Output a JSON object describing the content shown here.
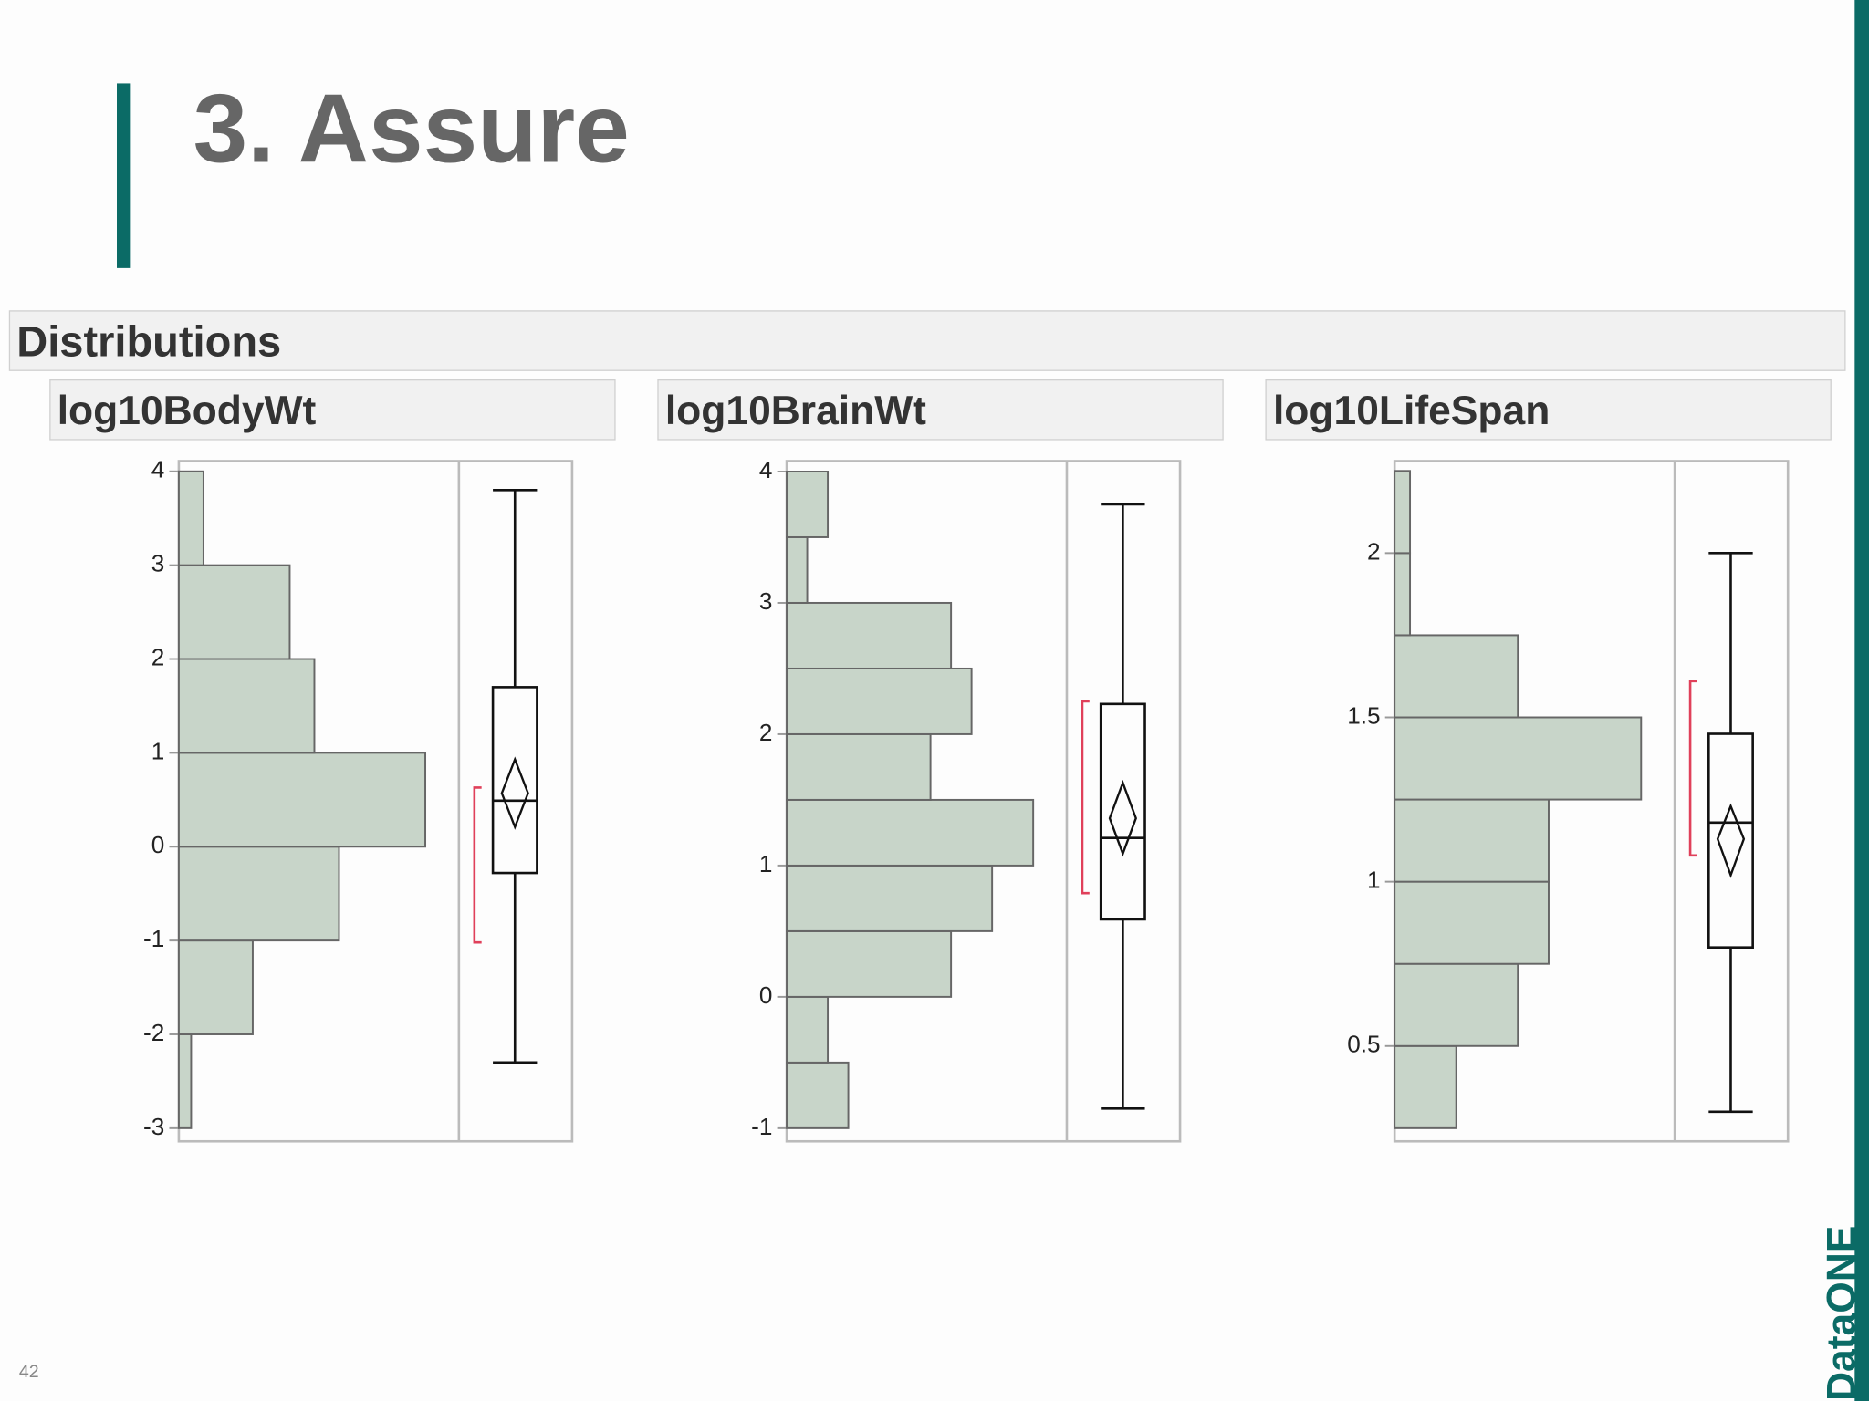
{
  "slide": {
    "title": "3. Assure",
    "page_number": "42",
    "logo": "DataONE"
  },
  "panel_title": "Distributions",
  "chart_data": [
    {
      "type": "histogram",
      "title": "log10BodyWt",
      "orientation": "horizontal",
      "color": "#c8d5c9",
      "bins": [
        -3,
        -2,
        -1,
        0,
        1,
        2,
        3,
        4
      ],
      "counts": [
        1,
        6,
        13,
        20,
        11,
        9,
        2
      ],
      "ylim": [
        -3.14,
        4.11
      ],
      "yticks": [
        -3,
        -2,
        -1,
        0,
        1,
        2,
        3,
        4
      ],
      "box": {
        "whisker_low": -2.3,
        "q1": -0.28,
        "median": 0.49,
        "q3": 1.7,
        "whisker_high": 3.8
      },
      "mean": 0.57,
      "mean_ci": [
        0.21,
        0.93
      ],
      "shortest_half": [
        -1.02,
        0.63
      ]
    },
    {
      "type": "histogram",
      "title": "log10BrainWt",
      "orientation": "horizontal",
      "color": "#c8d5c9",
      "bins": [
        -1,
        -0.5,
        0,
        0.5,
        1,
        1.5,
        2,
        2.5,
        3,
        3.5,
        4
      ],
      "counts": [
        3,
        2,
        8,
        10,
        12,
        7,
        9,
        8,
        1,
        2
      ],
      "ylim": [
        -1.1,
        4.08
      ],
      "yticks": [
        -1,
        0,
        1,
        2,
        3,
        4
      ],
      "box": {
        "whisker_low": -0.85,
        "q1": 0.59,
        "median": 1.21,
        "q3": 2.23,
        "whisker_high": 3.75
      },
      "mean": 1.36,
      "mean_ci": [
        1.09,
        1.63
      ],
      "shortest_half": [
        0.79,
        2.25
      ]
    },
    {
      "type": "histogram",
      "title": "log10LifeSpan",
      "orientation": "horizontal",
      "color": "#c8d5c9",
      "bins": [
        0.25,
        0.5,
        0.75,
        1,
        1.25,
        1.5,
        1.75,
        2,
        2.25
      ],
      "counts": [
        4,
        8,
        10,
        10,
        16,
        8,
        1,
        1
      ],
      "ylim": [
        0.21,
        2.28
      ],
      "yticks": [
        0.5,
        1,
        1.5,
        2
      ],
      "box": {
        "whisker_low": 0.3,
        "q1": 0.8,
        "median": 1.18,
        "q3": 1.45,
        "whisker_high": 2.0
      },
      "mean": 1.13,
      "mean_ci": [
        1.02,
        1.23
      ],
      "shortest_half": [
        1.08,
        1.61
      ]
    }
  ]
}
